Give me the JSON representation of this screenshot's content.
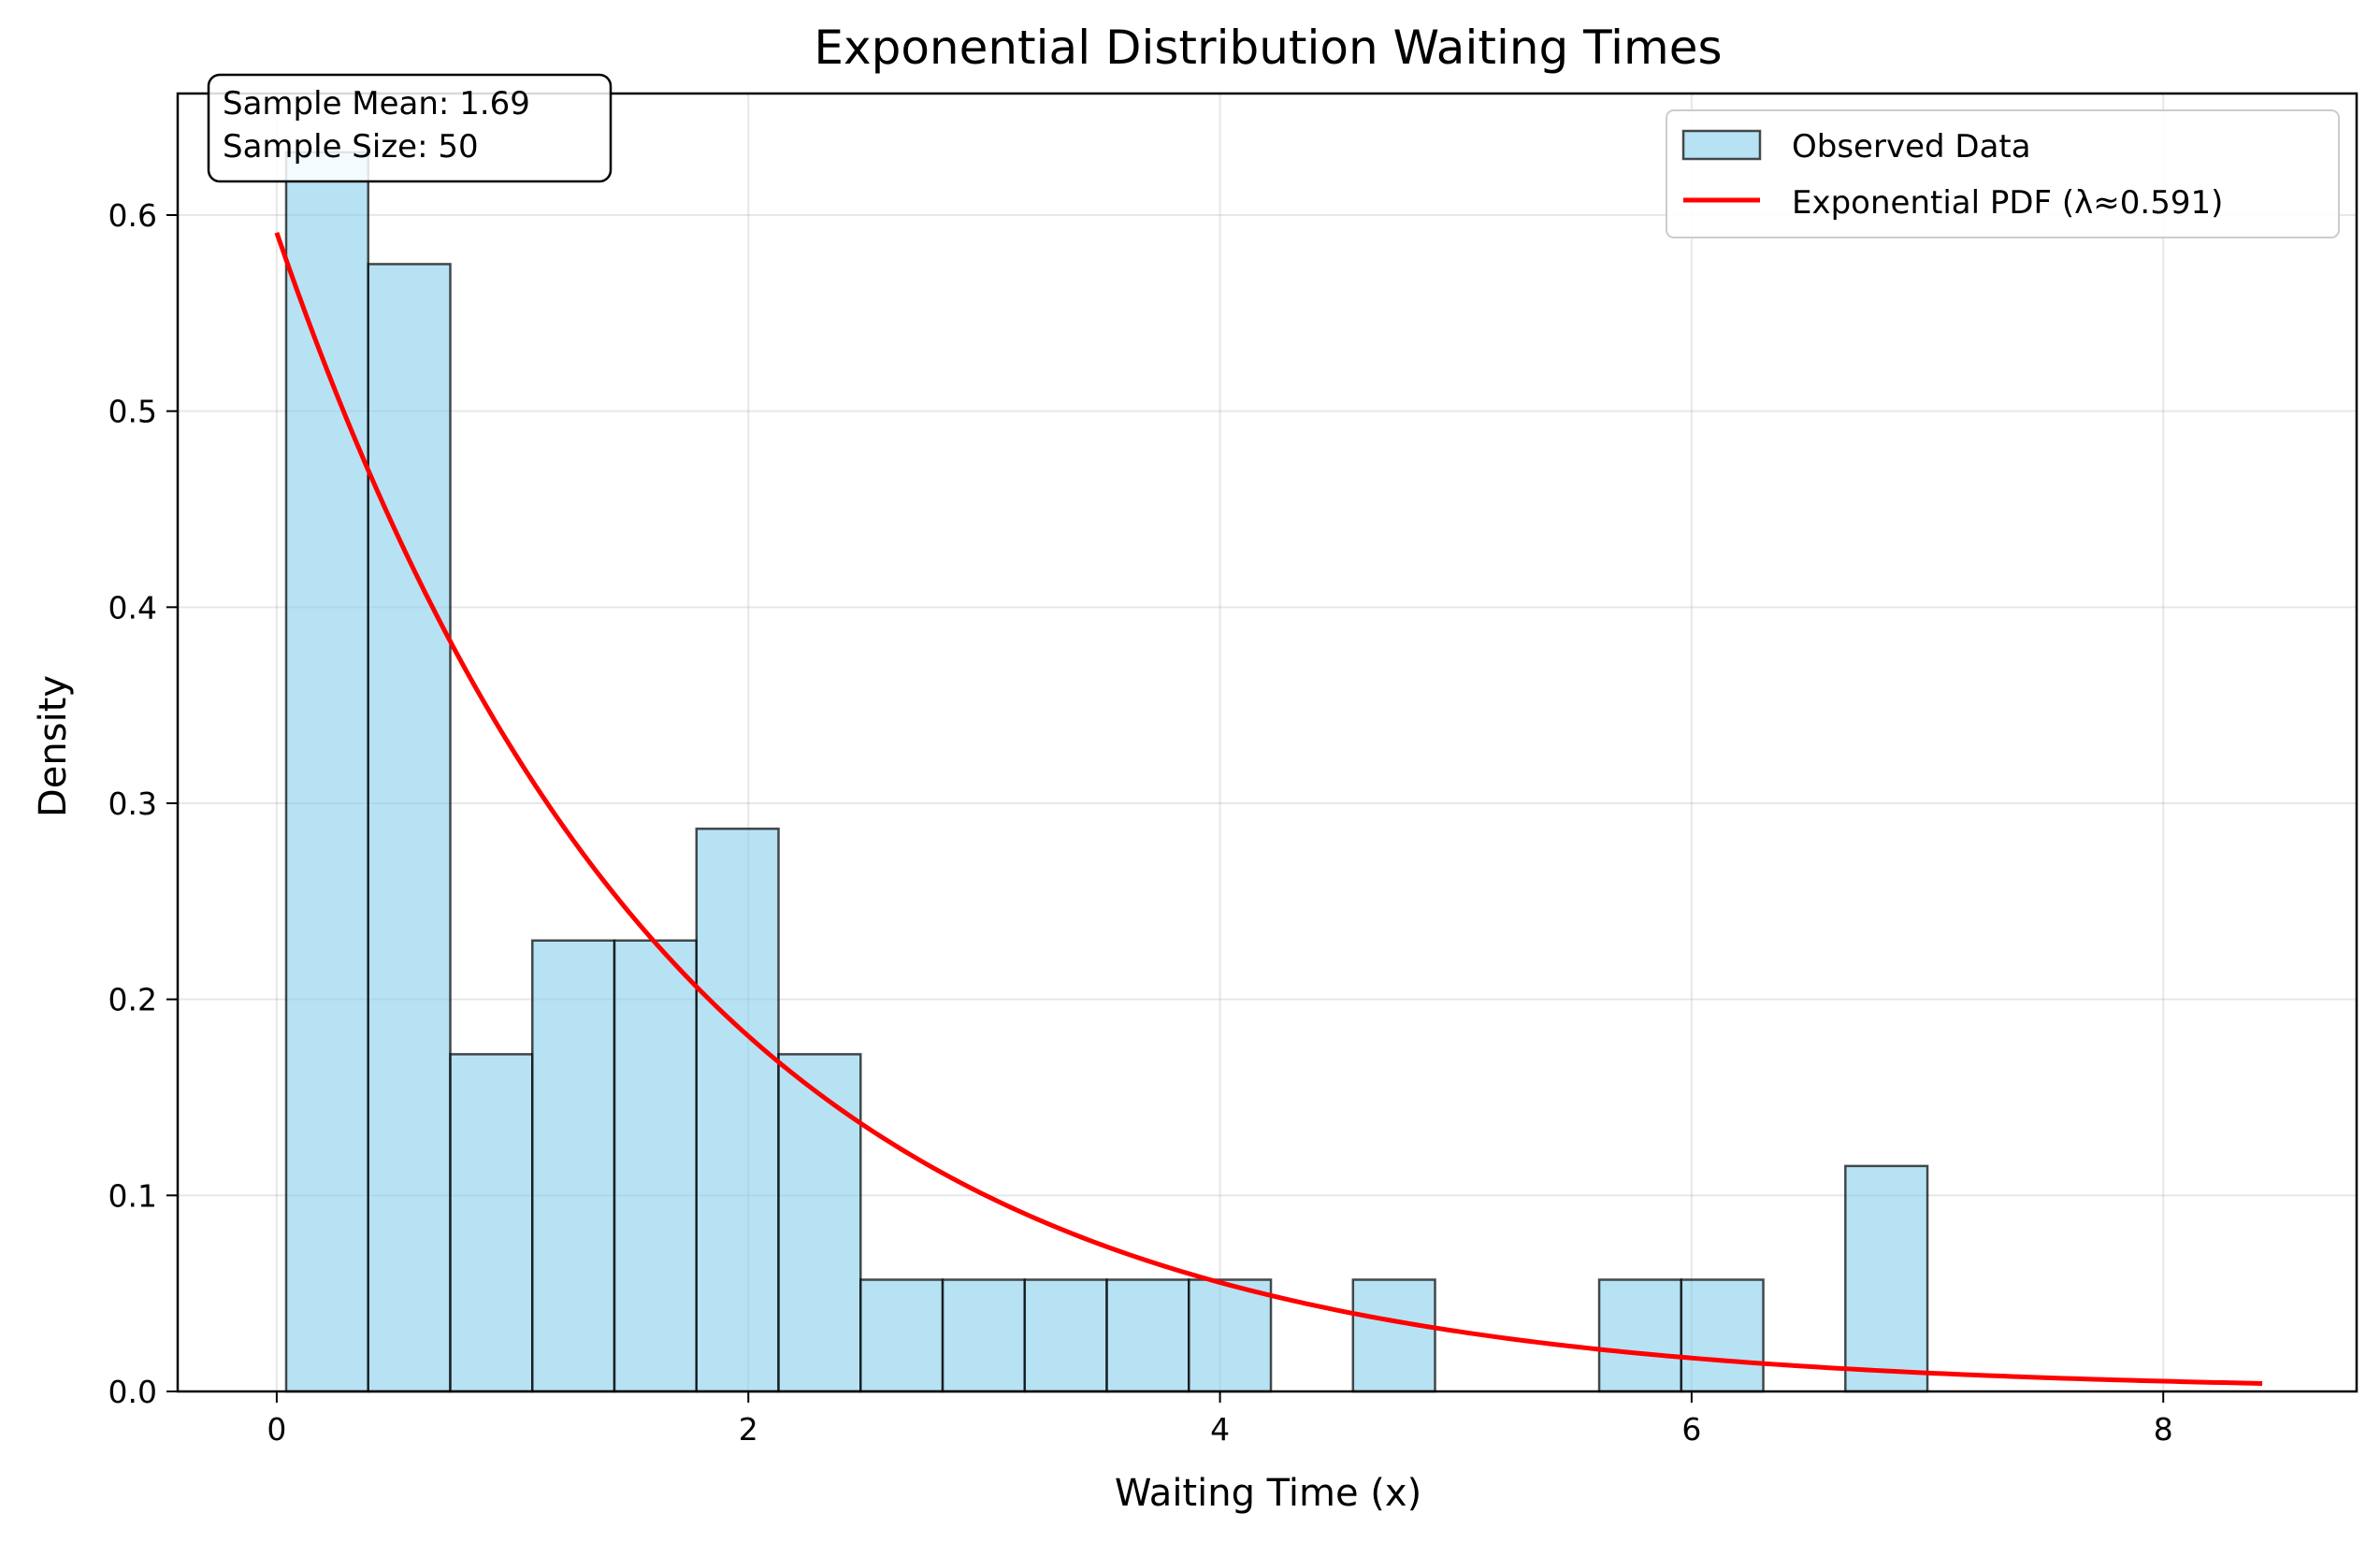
{
  "chart_data": {
    "type": "bar",
    "title": "Exponential Distribution Waiting Times",
    "xlabel": "Waiting Time (x)",
    "ylabel": "Density",
    "xlim": [
      -0.42,
      8.82
    ],
    "ylim": [
      0.0,
      0.662
    ],
    "xticks": [
      0,
      2,
      4,
      6,
      8
    ],
    "yticks": [
      0.0,
      0.1,
      0.2,
      0.3,
      0.4,
      0.5,
      0.6
    ],
    "xtick_labels": [
      "0",
      "2",
      "4",
      "6",
      "8"
    ],
    "ytick_labels": [
      "0.0",
      "0.1",
      "0.2",
      "0.3",
      "0.4",
      "0.5",
      "0.6"
    ],
    "grid": true,
    "legend_position": "top-right",
    "histogram": {
      "name": "Observed Data",
      "color": "#87ceeb",
      "edge_color": "#000000",
      "bin_edges": [
        0.04,
        0.388,
        0.736,
        1.084,
        1.432,
        1.78,
        2.128,
        2.476,
        2.824,
        3.172,
        3.52,
        3.868,
        4.216,
        4.564,
        4.912,
        5.26,
        5.608,
        5.956,
        6.304,
        6.652,
        7.0
      ],
      "values": [
        0.632,
        0.575,
        0.172,
        0.23,
        0.23,
        0.287,
        0.172,
        0.057,
        0.057,
        0.057,
        0.057,
        0.057,
        0.0,
        0.057,
        0.0,
        0.0,
        0.057,
        0.057,
        0.0,
        0.115
      ]
    },
    "curve": {
      "name": "Exponential PDF (λ≈0.591)",
      "color": "#ff0000",
      "lambda": 0.591,
      "x_range": [
        0,
        8.42
      ]
    },
    "annotation": {
      "lines": [
        "Sample Mean: 1.69",
        "Sample Size: 50"
      ]
    }
  }
}
